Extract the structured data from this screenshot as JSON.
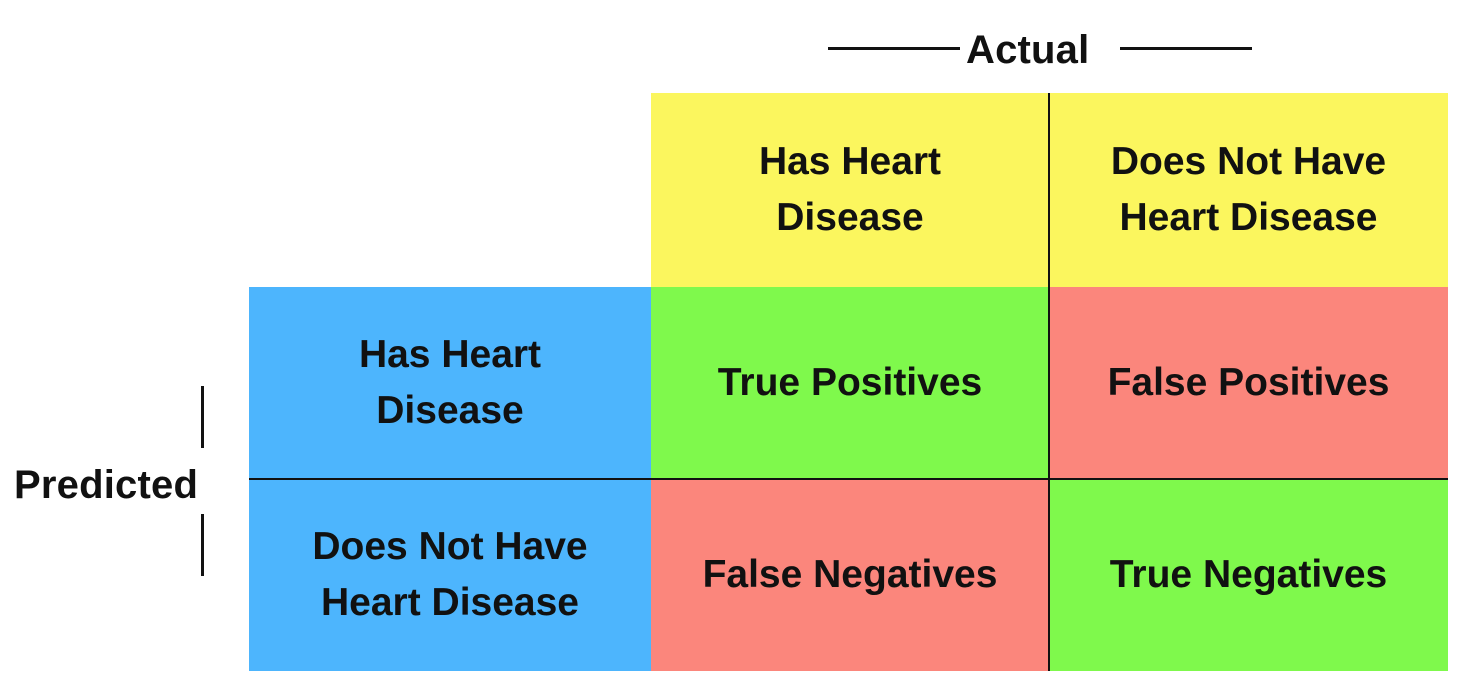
{
  "axis_labels": {
    "actual": "Actual",
    "predicted": "Predicted"
  },
  "column_headers": [
    {
      "line1": "Has Heart",
      "line2": "Disease"
    },
    {
      "line1": "Does Not Have",
      "line2": "Heart Disease"
    }
  ],
  "row_headers": [
    {
      "line1": "Has Heart",
      "line2": "Disease"
    },
    {
      "line1": "Does Not Have",
      "line2": "Heart Disease"
    }
  ],
  "cells": [
    [
      "True Positives",
      "False Positives"
    ],
    [
      "False Negatives",
      "True Negatives"
    ]
  ],
  "colors": {
    "column_header": "#FBF65E",
    "row_header": "#4DB5FD",
    "correct": "#7FF94C",
    "incorrect": "#FB867C",
    "text": "#111111"
  }
}
